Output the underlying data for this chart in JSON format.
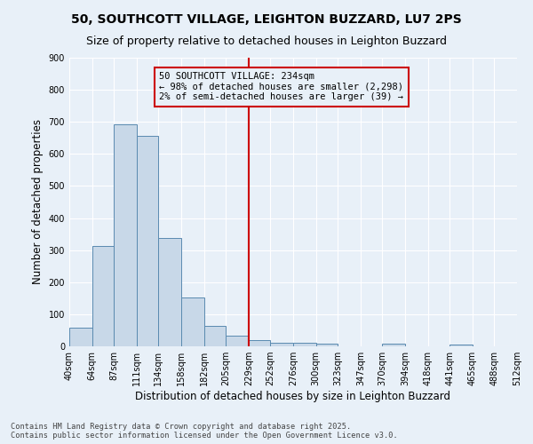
{
  "title": "50, SOUTHCOTT VILLAGE, LEIGHTON BUZZARD, LU7 2PS",
  "subtitle": "Size of property relative to detached houses in Leighton Buzzard",
  "xlabel": "Distribution of detached houses by size in Leighton Buzzard",
  "ylabel": "Number of detached properties",
  "tick_labels": [
    "40sqm",
    "64sqm",
    "87sqm",
    "111sqm",
    "134sqm",
    "158sqm",
    "182sqm",
    "205sqm",
    "229sqm",
    "252sqm",
    "276sqm",
    "300sqm",
    "323sqm",
    "347sqm",
    "370sqm",
    "394sqm",
    "418sqm",
    "441sqm",
    "465sqm",
    "488sqm",
    "512sqm"
  ],
  "bar_color": "#c8d8e8",
  "bar_edge_color": "#5a8ab0",
  "vline_x": 229,
  "vline_color": "#cc0000",
  "annotation_text": "50 SOUTHCOTT VILLAGE: 234sqm\n← 98% of detached houses are smaller (2,298)\n2% of semi-detached houses are larger (39) →",
  "annotation_box_color": "#cc0000",
  "ylim": [
    0,
    900
  ],
  "yticks": [
    0,
    100,
    200,
    300,
    400,
    500,
    600,
    700,
    800,
    900
  ],
  "background_color": "#e8f0f8",
  "grid_color": "#ffffff",
  "footer_text": "Contains HM Land Registry data © Crown copyright and database right 2025.\nContains public sector information licensed under the Open Government Licence v3.0.",
  "title_fontsize": 10,
  "subtitle_fontsize": 9,
  "axis_label_fontsize": 8.5,
  "tick_fontsize": 7,
  "annotation_fontsize": 7.5,
  "bar_data": [
    [
      40,
      57
    ],
    [
      64,
      313
    ],
    [
      87,
      693
    ],
    [
      111,
      657
    ],
    [
      134,
      337
    ],
    [
      158,
      152
    ],
    [
      182,
      65
    ],
    [
      205,
      32
    ],
    [
      229,
      20
    ],
    [
      252,
      12
    ],
    [
      276,
      10
    ],
    [
      300,
      8
    ],
    [
      323,
      0
    ],
    [
      347,
      0
    ],
    [
      370,
      7
    ],
    [
      394,
      0
    ],
    [
      418,
      0
    ],
    [
      441,
      5
    ],
    [
      465,
      0
    ],
    [
      488,
      0
    ]
  ],
  "tick_positions": [
    40,
    64,
    87,
    111,
    134,
    158,
    182,
    205,
    229,
    252,
    276,
    300,
    323,
    347,
    370,
    394,
    418,
    441,
    465,
    488,
    512
  ],
  "xlim": [
    40,
    512
  ]
}
